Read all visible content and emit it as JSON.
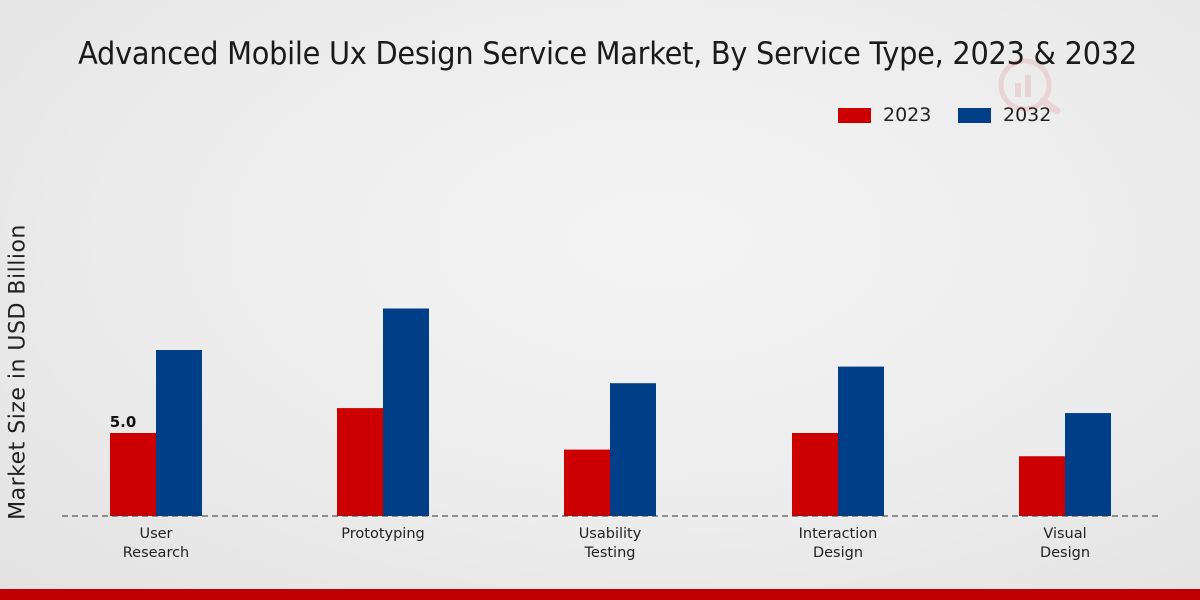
{
  "chart_data": {
    "type": "bar",
    "title": "Advanced Mobile Ux Design Service Market, By Service Type, 2023 & 2032",
    "ylabel": "Market Size in USD Billion",
    "xlabel": "",
    "categories": [
      [
        "User",
        "Research"
      ],
      [
        "Prototyping"
      ],
      [
        "Usability",
        "Testing"
      ],
      [
        "Interaction",
        "Design"
      ],
      [
        "Visual",
        "Design"
      ]
    ],
    "series": [
      {
        "name": "2023",
        "color": "#cc0000",
        "values": [
          5.0,
          6.5,
          4.0,
          5.0,
          3.6
        ]
      },
      {
        "name": "2032",
        "color": "#003f87",
        "values": [
          10.0,
          12.5,
          8.0,
          9.0,
          6.2
        ]
      }
    ],
    "data_labels": [
      {
        "series": 0,
        "index": 0,
        "text": "5.0"
      }
    ],
    "ylim": [
      0,
      20
    ],
    "grid": false,
    "legend_position": "top-right"
  }
}
